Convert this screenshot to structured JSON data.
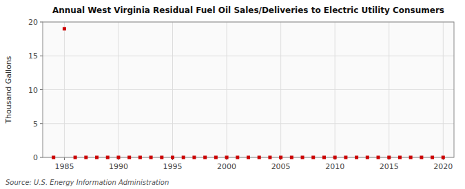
{
  "chart_data": {
    "type": "scatter",
    "title": "Annual West Virginia Residual Fuel Oil Sales/Deliveries to Electric Utility Consumers",
    "y_label": "Thousand Gallons",
    "annotations": [
      "Source: U.S. Energy Information Administration"
    ],
    "x": [
      1984,
      1985,
      1986,
      1987,
      1988,
      1989,
      1990,
      1991,
      1992,
      1993,
      1994,
      1995,
      1996,
      1997,
      1998,
      1999,
      2000,
      2001,
      2002,
      2003,
      2004,
      2005,
      2006,
      2007,
      2008,
      2009,
      2010,
      2011,
      2012,
      2013,
      2014,
      2015,
      2016,
      2017,
      2018,
      2019,
      2020
    ],
    "values": [
      0,
      19,
      0,
      0,
      0,
      0,
      0,
      0,
      0,
      0,
      0,
      0,
      0,
      0,
      0,
      0,
      0,
      0,
      0,
      0,
      0,
      0,
      0,
      0,
      0,
      0,
      0,
      0,
      0,
      0,
      0,
      0,
      0,
      0,
      0,
      0,
      0
    ],
    "color": "#cc0000",
    "marker": "square",
    "xlim": [
      1983,
      2021
    ],
    "ylim": [
      0,
      20
    ],
    "xticks": [
      1985,
      1990,
      1995,
      2000,
      2005,
      2010,
      2015,
      2020
    ],
    "yticks": [
      0,
      5,
      10,
      15,
      20
    ],
    "grid": true
  }
}
